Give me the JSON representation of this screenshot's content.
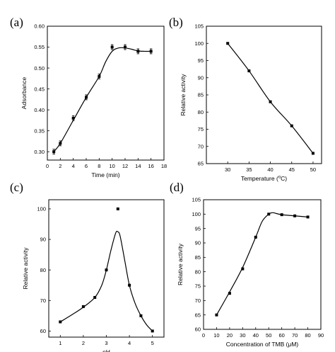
{
  "chart_data": [
    {
      "panel": "(a)",
      "type": "line",
      "xlabel": "Time (min)",
      "ylabel": "Adsorbance",
      "xlim": [
        0,
        18
      ],
      "ylim": [
        0.28,
        0.6
      ],
      "xticks": [
        0,
        2,
        4,
        6,
        8,
        10,
        12,
        14,
        16,
        18
      ],
      "yticks": [
        0.3,
        0.35,
        0.4,
        0.45,
        0.5,
        0.55,
        0.6
      ],
      "ytick_labels": [
        "0.30",
        "0.35",
        "0.40",
        "0.45",
        "0.50",
        "0.55",
        "0.60"
      ],
      "error_bars": true,
      "x": [
        1,
        2,
        4,
        6,
        8,
        10,
        12,
        14,
        16
      ],
      "y": [
        0.3,
        0.32,
        0.38,
        0.43,
        0.48,
        0.55,
        0.55,
        0.54,
        0.54
      ],
      "fit_curve": [
        [
          1,
          0.3
        ],
        [
          2,
          0.32
        ],
        [
          4,
          0.375
        ],
        [
          6,
          0.43
        ],
        [
          8,
          0.48
        ],
        [
          9,
          0.515
        ],
        [
          10,
          0.54
        ],
        [
          11,
          0.548
        ],
        [
          12,
          0.548
        ],
        [
          13,
          0.545
        ],
        [
          14,
          0.541
        ],
        [
          15,
          0.54
        ],
        [
          16,
          0.54
        ]
      ]
    },
    {
      "panel": "(b)",
      "type": "line",
      "xlabel": "Temperature (",
      "xlabel_sup": "o",
      "xlabel_end": "C)",
      "ylabel": "Relative activity",
      "xlim": [
        25,
        52
      ],
      "ylim": [
        65,
        105
      ],
      "xticks": [
        30,
        35,
        40,
        45,
        50
      ],
      "yticks": [
        65,
        70,
        75,
        80,
        85,
        90,
        95,
        100,
        105
      ],
      "x": [
        30,
        35,
        40,
        45,
        50
      ],
      "y": [
        100,
        92,
        83,
        76,
        68
      ],
      "fit_curve": [
        [
          30,
          100
        ],
        [
          35,
          92
        ],
        [
          40,
          83
        ],
        [
          45,
          76
        ],
        [
          50,
          68
        ]
      ]
    },
    {
      "panel": "(c)",
      "type": "line",
      "xlabel": "pH",
      "ylabel": "Relative activity",
      "xlim": [
        0.5,
        5.5
      ],
      "ylim": [
        58,
        103
      ],
      "xticks": [
        1,
        2,
        3,
        4,
        5
      ],
      "yticks": [
        60,
        70,
        80,
        90,
        100
      ],
      "x": [
        1,
        2,
        2.5,
        3,
        3.5,
        4,
        4.5,
        5
      ],
      "y": [
        63,
        68,
        71,
        80,
        100,
        75,
        65,
        60
      ],
      "fit_curve": [
        [
          1,
          63
        ],
        [
          1.5,
          65.3
        ],
        [
          2,
          67.8
        ],
        [
          2.5,
          71
        ],
        [
          2.8,
          75
        ],
        [
          3,
          80
        ],
        [
          3.2,
          86.5
        ],
        [
          3.4,
          92
        ],
        [
          3.5,
          92.5
        ],
        [
          3.6,
          91
        ],
        [
          3.8,
          83
        ],
        [
          4,
          75
        ],
        [
          4.25,
          69
        ],
        [
          4.5,
          65
        ],
        [
          4.75,
          62
        ],
        [
          5,
          60
        ]
      ]
    },
    {
      "panel": "(d)",
      "type": "line",
      "xlabel": "Concentration of TMB (μM)",
      "ylabel": "Relative activity",
      "xlim": [
        0,
        90
      ],
      "ylim": [
        60,
        105
      ],
      "xticks": [
        0,
        10,
        20,
        30,
        40,
        50,
        60,
        70,
        80,
        90
      ],
      "yticks": [
        60,
        65,
        70,
        75,
        80,
        85,
        90,
        95,
        100,
        105
      ],
      "x": [
        10,
        20,
        30,
        40,
        50,
        60,
        70,
        80
      ],
      "y": [
        65,
        72.5,
        81,
        92,
        100,
        99.8,
        99.4,
        99
      ],
      "fit_curve": [
        [
          10,
          65
        ],
        [
          20,
          73
        ],
        [
          30,
          81.5
        ],
        [
          40,
          92
        ],
        [
          45,
          97.5
        ],
        [
          50,
          100
        ],
        [
          53,
          100.5
        ],
        [
          56,
          100.2
        ],
        [
          60,
          99.8
        ],
        [
          70,
          99.4
        ],
        [
          80,
          99
        ]
      ]
    }
  ]
}
